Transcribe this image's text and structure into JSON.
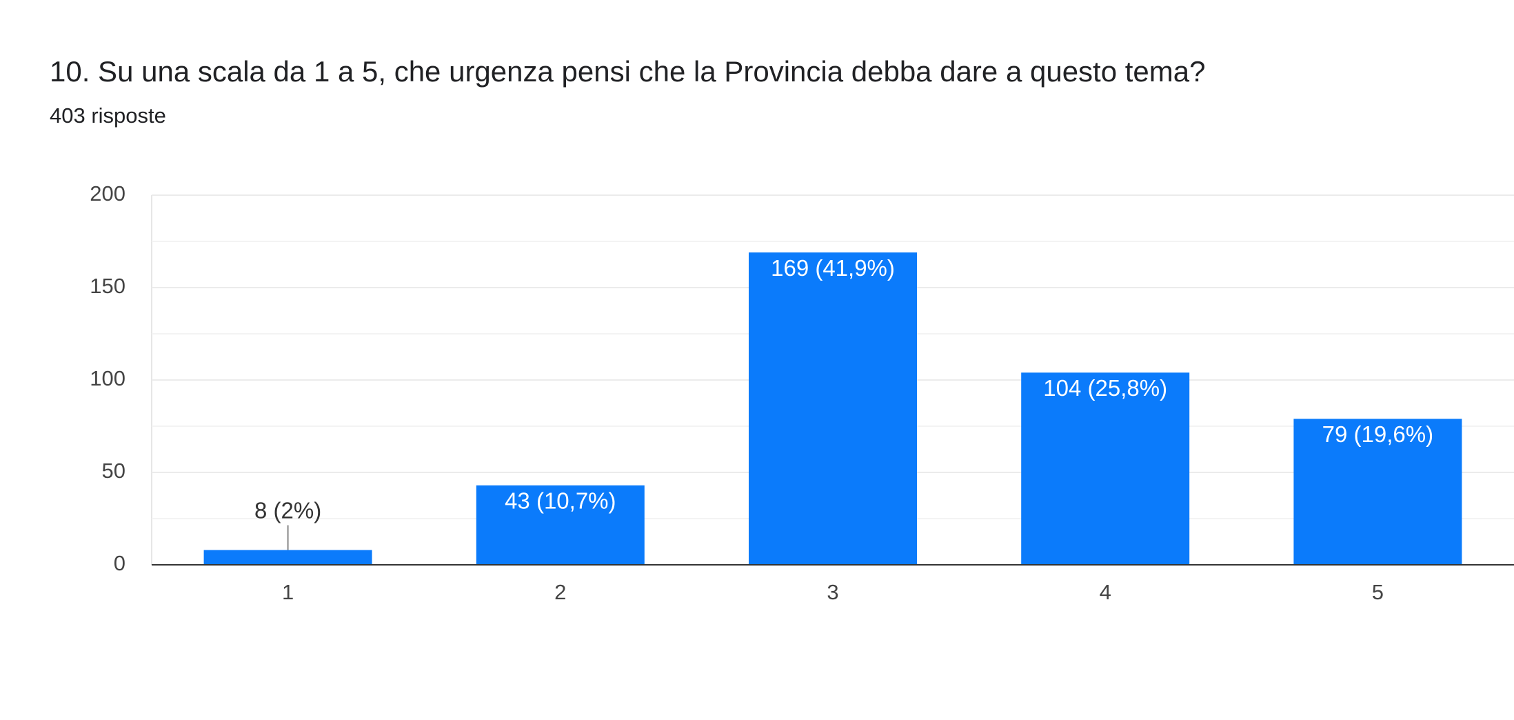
{
  "chart_data": {
    "type": "bar",
    "title": "10. Su una scala da 1 a 5, che urgenza pensi che la Provincia debba dare a questo tema?",
    "subtitle": "403 risposte",
    "categories": [
      "1",
      "2",
      "3",
      "4",
      "5"
    ],
    "values": [
      8,
      43,
      169,
      104,
      79
    ],
    "value_labels": [
      "8 (2%)",
      "43 (10,7%)",
      "169 (41,9%)",
      "104 (25,8%)",
      "79 (19,6%)"
    ],
    "color": "#0b7bfb",
    "ylim": [
      0,
      200
    ],
    "yticks": [
      0,
      50,
      100,
      150,
      200
    ],
    "minor_yticks": [
      25,
      75,
      125,
      175
    ],
    "grid": true
  }
}
